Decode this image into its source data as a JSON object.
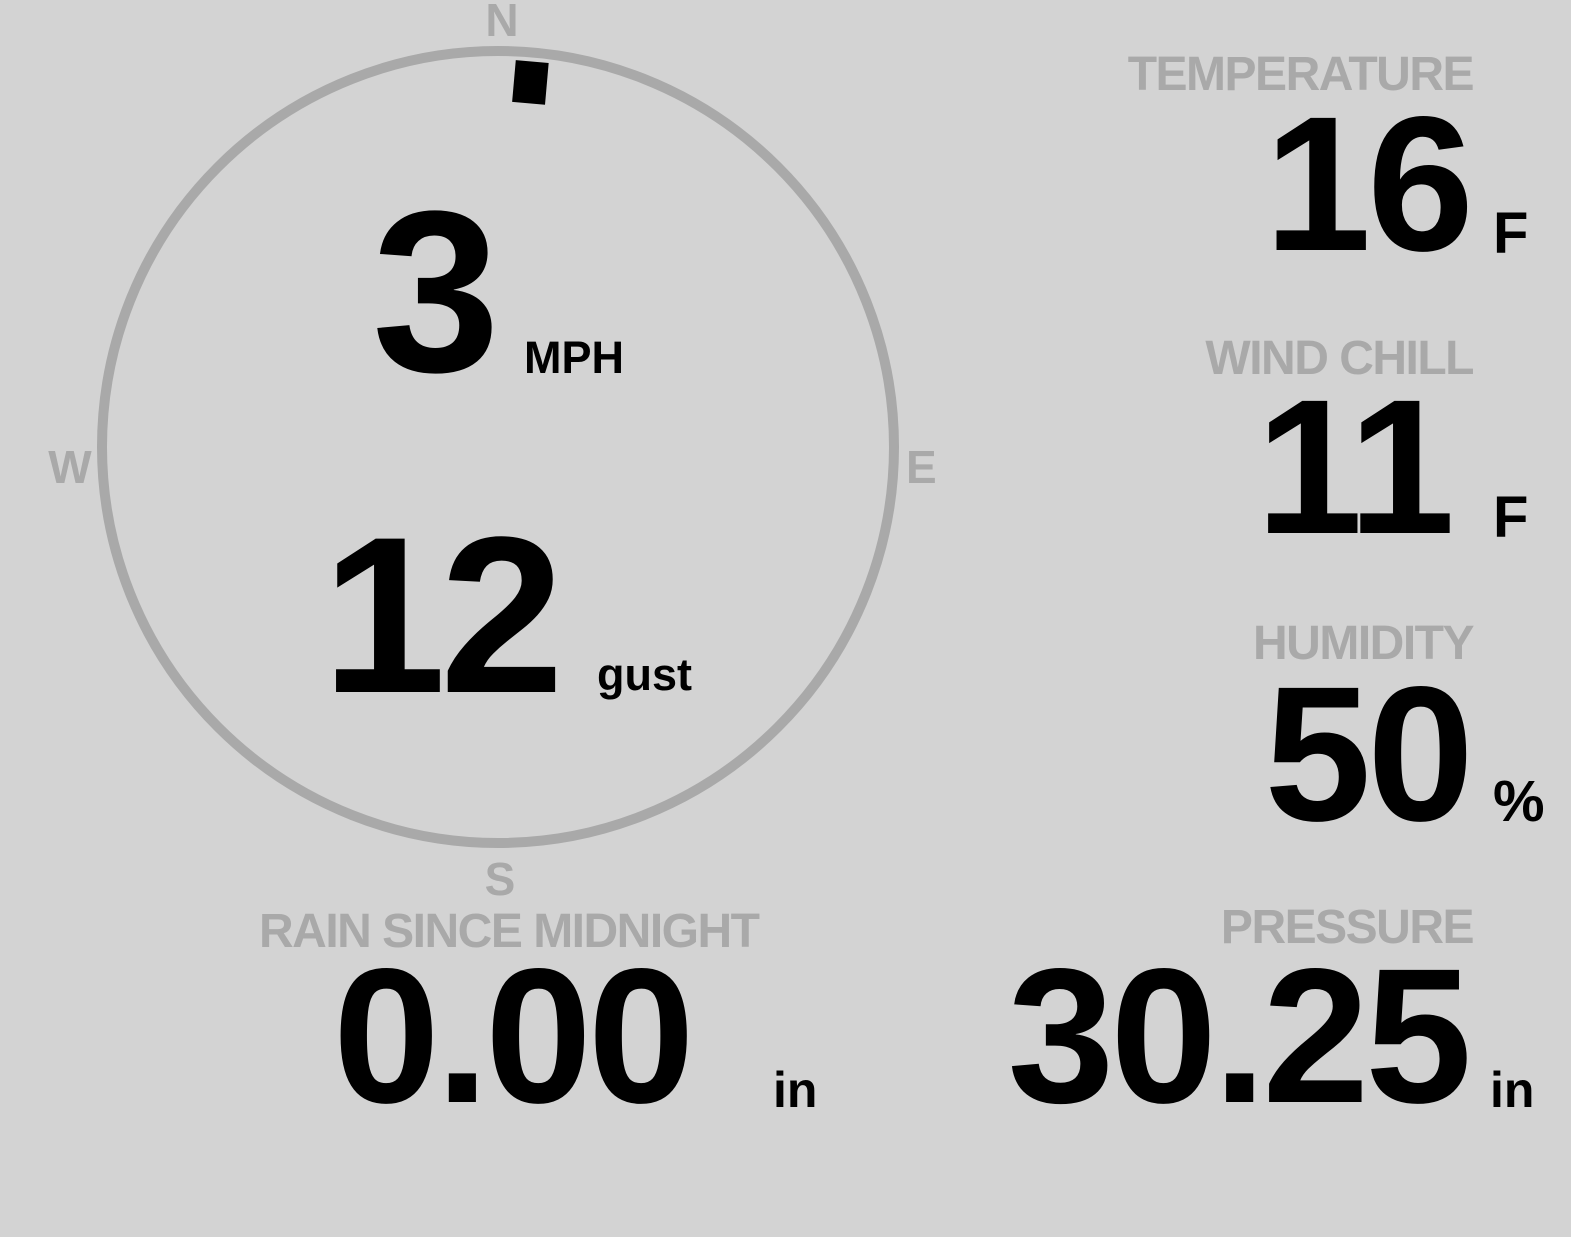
{
  "colors": {
    "background": "#d3d3d3",
    "label": "#a9a9a9",
    "value": "#000000",
    "ring": "#a9a9a9",
    "needle": "#000000"
  },
  "wind": {
    "compass": {
      "n": "N",
      "e": "E",
      "s": "S",
      "w": "W"
    },
    "direction_degrees": 5,
    "speed": "3",
    "speed_unit": "MPH",
    "gust": "12",
    "gust_unit": "gust"
  },
  "temperature": {
    "label": "TEMPERATURE",
    "value": "16",
    "unit": "F"
  },
  "wind_chill": {
    "label": "WIND CHILL",
    "value": "11",
    "unit": "F"
  },
  "humidity": {
    "label": "HUMIDITY",
    "value": "50",
    "unit": "%"
  },
  "pressure": {
    "label": "PRESSURE",
    "value": "30.25",
    "unit": "in"
  },
  "rain": {
    "label": "RAIN SINCE MIDNIGHT",
    "value": "0.00",
    "unit": "in"
  }
}
